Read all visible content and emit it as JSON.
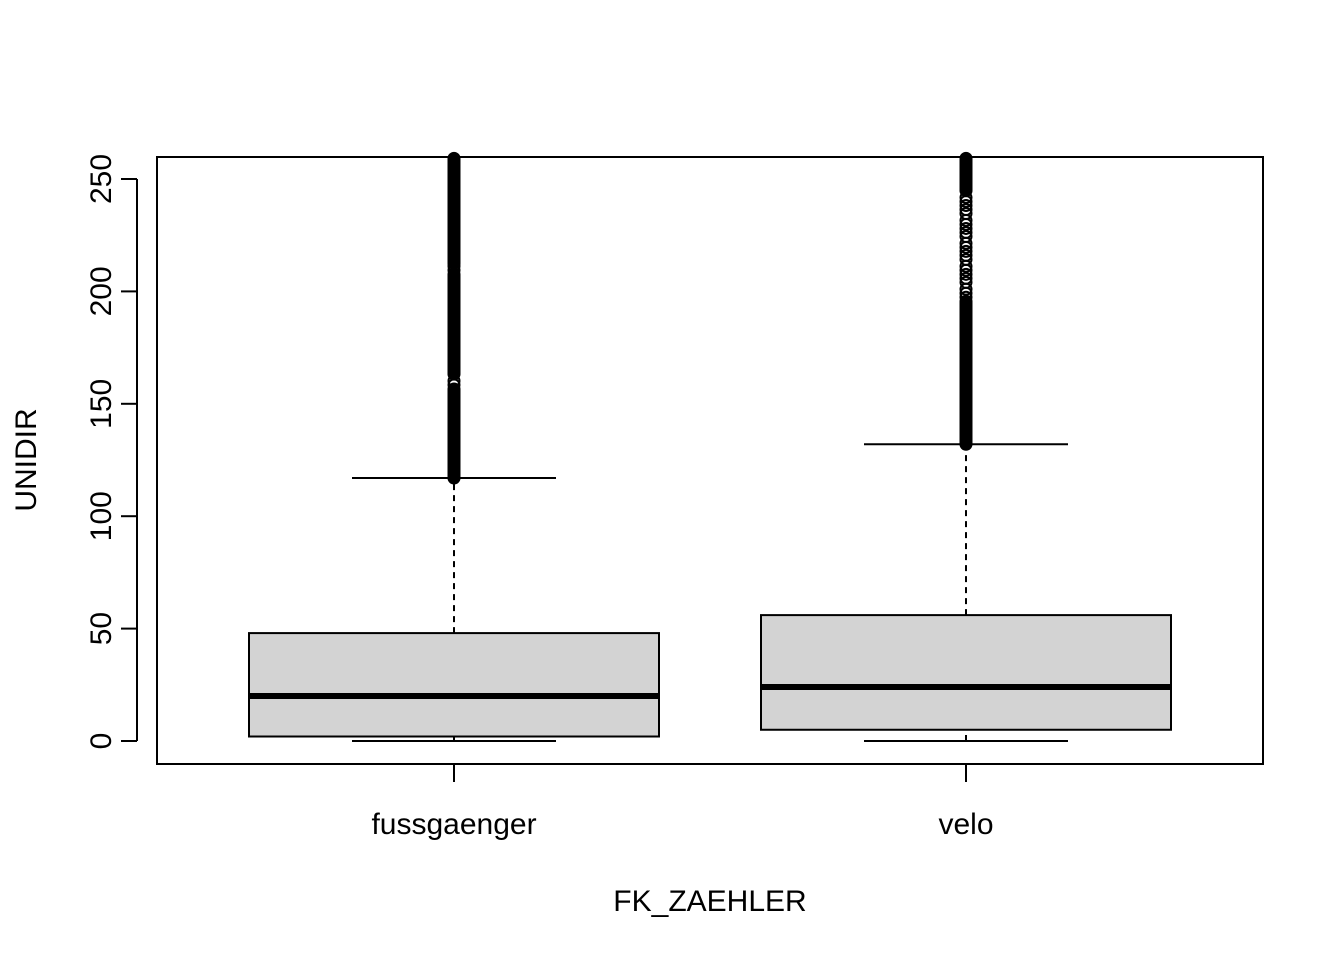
{
  "chart_data": {
    "type": "boxplot",
    "title": "",
    "xlabel": "FK_ZAEHLER",
    "ylabel": "UNIDIR",
    "ylim": [
      -10,
      260
    ],
    "y_ticks": [
      0,
      50,
      100,
      150,
      200,
      250
    ],
    "grid": false,
    "categories": [
      "fussgaenger",
      "velo"
    ],
    "boxes": [
      {
        "name": "fussgaenger",
        "min": 0,
        "q1": 2,
        "median": 20,
        "q3": 48,
        "whisker_high": 117,
        "outlier_range": [
          117,
          260
        ],
        "outlier_gaps": [
          [
            207,
            212
          ],
          [
            157,
            163
          ]
        ]
      },
      {
        "name": "velo",
        "min": 0,
        "q1": 5,
        "median": 24,
        "q3": 56,
        "whisker_high": 132,
        "outlier_range": [
          132,
          260
        ],
        "outlier_gaps": [
          [
            195,
            215
          ],
          [
            215,
            245
          ]
        ]
      }
    ]
  }
}
